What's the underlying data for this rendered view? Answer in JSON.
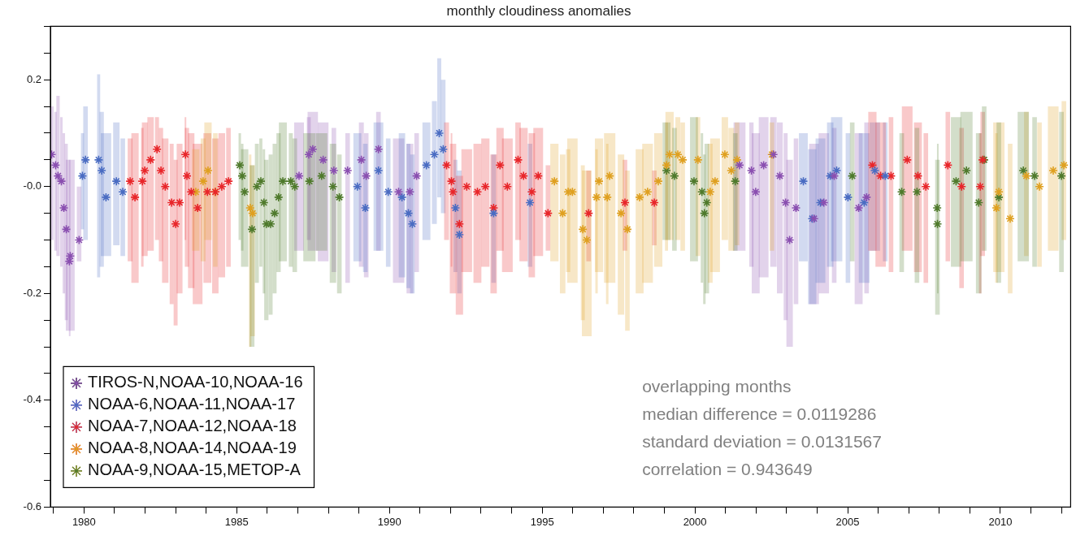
{
  "chart_data": {
    "type": "scatter",
    "title": "monthly cloudiness anomalies",
    "xlim": [
      1978.9,
      2012.3
    ],
    "xticks": [
      {
        "value": 1979,
        "label": null
      },
      1980,
      {
        "value": 1981,
        "label": null
      },
      {
        "value": 1982,
        "label": null
      },
      {
        "value": 1983,
        "label": null
      },
      {
        "value": 1984,
        "label": null
      },
      1985,
      {
        "value": 1986,
        "label": null
      },
      {
        "value": 1987,
        "label": null
      },
      {
        "value": 1988,
        "label": null
      },
      {
        "value": 1989,
        "label": null
      },
      1990,
      {
        "value": 1991,
        "label": null
      },
      {
        "value": 1992,
        "label": null
      },
      {
        "value": 1993,
        "label": null
      },
      {
        "value": 1994,
        "label": null
      },
      1995,
      {
        "value": 1996,
        "label": null
      },
      {
        "value": 1997,
        "label": null
      },
      {
        "value": 1998,
        "label": null
      },
      {
        "value": 1999,
        "label": null
      },
      2000,
      {
        "value": 2001,
        "label": null
      },
      {
        "value": 2002,
        "label": null
      },
      {
        "value": 2003,
        "label": null
      },
      {
        "value": 2004,
        "label": null
      },
      2005,
      {
        "value": 2006,
        "label": null
      },
      {
        "value": 2007,
        "label": null
      },
      {
        "value": 2008,
        "label": null
      },
      {
        "value": 2009,
        "label": null
      },
      2010,
      {
        "value": 2011,
        "label": null
      },
      {
        "value": 2012,
        "label": null
      }
    ],
    "ylim": [
      -0.6,
      0.3
    ],
    "yticks": [
      -0.6,
      {
        "value": -0.55,
        "label": null
      },
      {
        "value": -0.5,
        "label": null
      },
      {
        "value": -0.45,
        "label": null
      },
      -0.4,
      {
        "value": -0.35,
        "label": null
      },
      {
        "value": -0.3,
        "label": null
      },
      {
        "value": -0.25,
        "label": null
      },
      -0.2,
      {
        "value": -0.15,
        "label": null
      },
      {
        "value": -0.1,
        "label": null
      },
      {
        "value": -0.05,
        "label": null
      },
      {
        "value": 0,
        "label": "-0.0"
      },
      {
        "value": 0.05,
        "label": null
      },
      {
        "value": 0.1,
        "label": null
      },
      {
        "value": 0.15,
        "label": null
      },
      0.2,
      {
        "value": 0.25,
        "label": null
      },
      {
        "value": 0.3,
        "label": null
      }
    ],
    "grid": false,
    "marker": "cross",
    "legend": "bottom left",
    "annotations": [
      "overlapping months",
      "median difference = 0.0119286",
      "standard deviation = 0.0131567",
      "correlation = 0.943649"
    ],
    "series": [
      {
        "name": "TIROS-N,NOAA-10,NOAA-16",
        "color": "#8a4fb0",
        "x": [
          1978.94,
          1979.07,
          1979.15,
          1979.26,
          1979.34,
          1979.42,
          1979.52,
          1979.55,
          1979.84,
          1987.04,
          1987.36,
          1987.49,
          1987.83,
          1988.18,
          1988.63,
          1989.08,
          1989.24,
          1989.64,
          1990.3,
          1990.67,
          1990.89,
          2001.46,
          2001.85,
          2001.99,
          2002.25,
          2002.57,
          2002.78,
          2002.97,
          2003.1,
          2003.31,
          2003.9,
          2004.22,
          2004.56,
          2005.36,
          2005.62
        ],
        "values": [
          0.06,
          0.04,
          0.02,
          0.01,
          -0.04,
          -0.08,
          -0.14,
          -0.13,
          -0.1,
          0.02,
          0.06,
          0.07,
          0.05,
          0.03,
          0.03,
          0.05,
          0.02,
          0.07,
          -0.01,
          -0.01,
          0.02,
          0.04,
          0.03,
          -0.01,
          0.04,
          0.06,
          0.02,
          -0.03,
          -0.1,
          -0.04,
          -0.06,
          -0.03,
          0.02,
          -0.04,
          -0.02
        ],
        "upper": [
          0.15,
          0.14,
          0.17,
          0.13,
          0.1,
          0.08,
          0.05,
          0.05,
          0.0,
          0.12,
          0.13,
          0.14,
          0.12,
          0.11,
          0.1,
          0.12,
          0.1,
          0.14,
          0.09,
          0.08,
          0.1,
          0.12,
          0.12,
          0.1,
          0.13,
          0.13,
          0.12,
          0.1,
          0.05,
          0.09,
          0.08,
          0.1,
          0.11,
          0.1,
          0.12
        ],
        "lower": [
          -0.1,
          -0.12,
          -0.13,
          -0.15,
          -0.2,
          -0.25,
          -0.28,
          -0.27,
          -0.14,
          -0.12,
          -0.1,
          -0.12,
          -0.14,
          -0.16,
          -0.18,
          -0.15,
          -0.17,
          -0.12,
          -0.18,
          -0.2,
          -0.16,
          -0.12,
          -0.15,
          -0.2,
          -0.17,
          -0.15,
          -0.2,
          -0.25,
          -0.3,
          -0.22,
          -0.22,
          -0.2,
          -0.18,
          -0.22,
          -0.2
        ]
      },
      {
        "name": "NOAA-6,NOAA-11,NOAA-17",
        "color": "#4a6cc2",
        "x": [
          1979.95,
          1980.05,
          1980.48,
          1980.58,
          1980.72,
          1981.06,
          1981.27,
          1988.95,
          1989.21,
          1989.64,
          1989.96,
          1990.41,
          1990.62,
          1990.75,
          1991.21,
          1991.47,
          1991.63,
          1991.76,
          1992.16,
          1992.29,
          1993.41,
          1994.6,
          2003.55,
          2003.84,
          2004.11,
          2004.43,
          2004.64,
          2005.01,
          2005.54,
          2005.89,
          2006.23
        ],
        "values": [
          0.02,
          0.05,
          0.05,
          0.03,
          -0.02,
          0.01,
          -0.01,
          0.0,
          -0.04,
          0.03,
          -0.01,
          -0.02,
          -0.05,
          -0.07,
          0.04,
          0.06,
          0.1,
          0.07,
          -0.04,
          -0.09,
          -0.05,
          -0.03,
          0.01,
          -0.06,
          -0.03,
          0.02,
          0.03,
          -0.02,
          -0.03,
          0.03,
          0.02
        ],
        "upper": [
          0.1,
          0.15,
          0.21,
          0.14,
          0.1,
          0.12,
          0.09,
          0.1,
          0.08,
          0.12,
          0.09,
          0.1,
          0.08,
          0.06,
          0.12,
          0.16,
          0.24,
          0.2,
          0.05,
          0.03,
          0.06,
          0.08,
          0.1,
          0.07,
          0.09,
          0.12,
          0.13,
          0.1,
          0.1,
          0.12,
          0.12
        ],
        "lower": [
          -0.08,
          -0.1,
          -0.17,
          -0.15,
          -0.13,
          -0.11,
          -0.13,
          -0.14,
          -0.16,
          -0.12,
          -0.15,
          -0.17,
          -0.19,
          -0.2,
          -0.1,
          -0.07,
          -0.02,
          -0.05,
          -0.16,
          -0.2,
          -0.18,
          -0.15,
          -0.14,
          -0.22,
          -0.18,
          -0.15,
          -0.14,
          -0.18,
          -0.18,
          -0.12,
          -0.14
        ]
      },
      {
        "name": "NOAA-7,NOAA-12,NOAA-18",
        "color": "#e8262a",
        "x": [
          1981.51,
          1981.67,
          1981.91,
          1981.99,
          1982.18,
          1982.39,
          1982.52,
          1982.66,
          1982.87,
          1983.0,
          1983.13,
          1983.32,
          1983.37,
          1983.51,
          1983.72,
          1984.04,
          1984.3,
          1984.51,
          1984.73,
          1991.87,
          1992.03,
          1992.08,
          1992.29,
          1992.53,
          1992.88,
          1993.14,
          1993.41,
          1993.62,
          1993.86,
          1994.21,
          1994.39,
          1994.66,
          1994.87,
          1995.19,
          1996.52,
          1997.71,
          1998.67,
          2005.81,
          2006.08,
          2006.42,
          2006.95,
          2007.3,
          2007.56,
          2008.28,
          2008.73,
          2009.34,
          2009.42
        ],
        "values": [
          0.01,
          -0.02,
          0.01,
          0.03,
          0.05,
          0.07,
          0.03,
          0.0,
          -0.03,
          -0.07,
          -0.03,
          0.06,
          0.02,
          -0.01,
          -0.04,
          -0.01,
          -0.01,
          0.0,
          0.01,
          0.04,
          0.01,
          -0.01,
          -0.07,
          0.0,
          -0.01,
          0.0,
          -0.04,
          0.04,
          0.0,
          0.05,
          0.02,
          -0.01,
          0.02,
          -0.05,
          -0.05,
          -0.03,
          -0.03,
          0.04,
          0.02,
          0.02,
          0.05,
          0.02,
          0.0,
          0.04,
          0.0,
          0.0,
          0.05
        ],
        "upper": [
          0.09,
          0.1,
          0.11,
          0.12,
          0.13,
          0.13,
          0.11,
          0.09,
          0.08,
          0.05,
          0.08,
          0.13,
          0.11,
          0.1,
          0.08,
          0.1,
          0.09,
          0.1,
          0.11,
          0.12,
          0.1,
          0.08,
          0.02,
          0.07,
          0.08,
          0.09,
          0.06,
          0.11,
          0.09,
          0.12,
          0.11,
          0.1,
          0.11,
          0.04,
          0.03,
          0.05,
          0.03,
          0.14,
          0.12,
          0.13,
          0.15,
          0.12,
          0.1,
          0.14,
          0.11,
          0.1,
          0.14
        ],
        "lower": [
          -0.14,
          -0.18,
          -0.15,
          -0.13,
          -0.12,
          -0.1,
          -0.14,
          -0.18,
          -0.22,
          -0.26,
          -0.2,
          -0.1,
          -0.15,
          -0.19,
          -0.22,
          -0.18,
          -0.2,
          -0.17,
          -0.15,
          -0.1,
          -0.15,
          -0.2,
          -0.24,
          -0.16,
          -0.18,
          -0.15,
          -0.2,
          -0.12,
          -0.16,
          -0.1,
          -0.14,
          -0.17,
          -0.13,
          -0.12,
          -0.14,
          -0.12,
          -0.11,
          -0.12,
          -0.15,
          -0.16,
          -0.12,
          -0.16,
          -0.18,
          -0.14,
          -0.19,
          -0.2,
          -0.13
        ]
      },
      {
        "name": "NOAA-8,NOAA-14,NOAA-19",
        "color": "#dfa020",
        "x": [
          1983.66,
          1983.9,
          1984.06,
          1984.3,
          1985.44,
          1985.52,
          1995.4,
          1995.67,
          1995.85,
          1995.99,
          1996.33,
          1996.46,
          1996.78,
          1996.86,
          1997.13,
          1997.21,
          1997.58,
          1997.79,
          1998.19,
          1998.45,
          1998.8,
          1999.07,
          1999.17,
          1999.44,
          1999.6,
          2000.1,
          2000.5,
          2000.66,
          2000.98,
          2001.19,
          2001.38,
          2002.52,
          2009.87,
          2009.95,
          2010.32,
          2010.85,
          2011.28,
          2011.73,
          2012.08
        ],
        "values": [
          -0.01,
          0.01,
          0.03,
          -0.01,
          -0.04,
          -0.05,
          0.01,
          -0.05,
          -0.01,
          -0.01,
          -0.08,
          -0.1,
          -0.02,
          0.01,
          -0.02,
          0.02,
          -0.05,
          -0.08,
          -0.02,
          -0.01,
          0.01,
          0.04,
          0.06,
          0.06,
          0.05,
          0.05,
          -0.01,
          0.01,
          0.06,
          0.03,
          0.05,
          0.06,
          -0.04,
          -0.01,
          -0.06,
          0.02,
          0.0,
          0.03,
          0.04
        ],
        "upper": [
          0.07,
          0.09,
          0.12,
          0.1,
          0.06,
          0.04,
          0.08,
          0.06,
          0.07,
          0.09,
          0.04,
          0.03,
          0.07,
          0.09,
          0.08,
          0.1,
          0.06,
          0.03,
          0.07,
          0.08,
          0.1,
          0.12,
          0.14,
          0.13,
          0.12,
          0.13,
          0.08,
          0.09,
          0.13,
          0.11,
          0.12,
          0.12,
          0.1,
          0.12,
          0.08,
          0.14,
          0.12,
          0.15,
          0.16
        ],
        "lower": [
          -0.12,
          -0.14,
          -0.1,
          -0.15,
          -0.3,
          -0.28,
          -0.14,
          -0.2,
          -0.16,
          -0.18,
          -0.25,
          -0.28,
          -0.2,
          -0.16,
          -0.22,
          -0.18,
          -0.24,
          -0.27,
          -0.2,
          -0.18,
          -0.15,
          -0.12,
          -0.1,
          -0.1,
          -0.12,
          -0.13,
          -0.18,
          -0.16,
          -0.1,
          -0.12,
          -0.11,
          -0.12,
          -0.18,
          -0.16,
          -0.2,
          -0.13,
          -0.15,
          -0.12,
          -0.1
        ]
      },
      {
        "name": "NOAA-9,NOAA-15,METOP-A",
        "color": "#4f7a2c",
        "x": [
          1985.1,
          1985.18,
          1985.26,
          1985.5,
          1985.66,
          1985.79,
          1985.89,
          1985.97,
          1986.11,
          1986.24,
          1986.37,
          1986.51,
          1986.77,
          1986.9,
          1987.38,
          1987.78,
          1988.15,
          1988.36,
          1999.07,
          1999.33,
          1999.97,
          2000.23,
          2000.31,
          2000.39,
          2001.32,
          2005.15,
          2006.77,
          2007.27,
          2007.93,
          2007.94,
          2008.55,
          2008.89,
          2009.29,
          2009.47,
          2009.95,
          2010.75,
          2011.12,
          2012.0
        ],
        "values": [
          0.04,
          0.02,
          -0.01,
          -0.08,
          0.0,
          0.01,
          -0.03,
          -0.07,
          -0.07,
          -0.05,
          -0.02,
          0.01,
          0.01,
          0.0,
          0.01,
          0.02,
          0.0,
          -0.02,
          0.03,
          0.02,
          0.01,
          -0.01,
          -0.05,
          -0.03,
          0.01,
          0.02,
          -0.01,
          -0.01,
          -0.04,
          -0.07,
          0.01,
          0.03,
          -0.03,
          0.05,
          -0.02,
          0.03,
          0.02,
          0.02
        ],
        "upper": [
          0.1,
          0.08,
          0.07,
          0.04,
          0.08,
          0.09,
          0.07,
          0.05,
          0.06,
          0.08,
          0.1,
          0.12,
          0.1,
          0.09,
          0.1,
          0.1,
          0.08,
          0.06,
          0.12,
          0.11,
          0.13,
          0.1,
          0.06,
          0.08,
          0.1,
          0.12,
          0.1,
          0.11,
          0.08,
          0.05,
          0.13,
          0.14,
          0.1,
          0.15,
          0.12,
          0.14,
          0.13,
          0.14
        ],
        "lower": [
          -0.1,
          -0.12,
          -0.15,
          -0.3,
          -0.18,
          -0.15,
          -0.2,
          -0.25,
          -0.24,
          -0.2,
          -0.16,
          -0.14,
          -0.15,
          -0.16,
          -0.14,
          -0.12,
          -0.18,
          -0.2,
          -0.1,
          -0.12,
          -0.14,
          -0.18,
          -0.22,
          -0.2,
          -0.12,
          -0.14,
          -0.16,
          -0.18,
          -0.2,
          -0.24,
          -0.15,
          -0.14,
          -0.2,
          -0.12,
          -0.18,
          -0.14,
          -0.15,
          -0.16
        ]
      }
    ]
  }
}
